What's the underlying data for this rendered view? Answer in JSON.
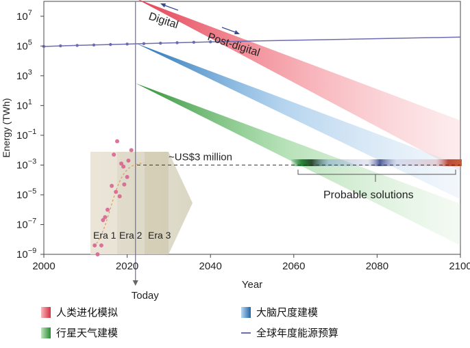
{
  "chart_data": {
    "type": "area",
    "xlabel": "Year",
    "ylabel": "Energy (TWh)",
    "xlim": [
      2000,
      2100
    ],
    "ylim_log10": [
      -9,
      8
    ],
    "x_ticks": [
      "2000",
      "2020",
      "2040",
      "2060",
      "2080",
      "2100"
    ],
    "y_ticks": [
      {
        "base": "10",
        "exp": "7"
      },
      {
        "base": "10",
        "exp": "5"
      },
      {
        "base": "10",
        "exp": "3"
      },
      {
        "base": "10",
        "exp": "1"
      },
      {
        "base": "10",
        "exp": "−1"
      },
      {
        "base": "10",
        "exp": "−3"
      },
      {
        "base": "10",
        "exp": "−5"
      },
      {
        "base": "10",
        "exp": "−7"
      },
      {
        "base": "10",
        "exp": "−9"
      }
    ],
    "today_year": 2022,
    "today_label": "Today",
    "series": [
      {
        "name": "人类进化模拟",
        "color": "#e8505b",
        "x": [
          2022,
          2100
        ],
        "upper_log10": [
          8.2,
          0.0
        ],
        "lower_log10": [
          8.2,
          -3.4
        ]
      },
      {
        "name": "大脑尺度建模",
        "color": "#3a86c8",
        "x": [
          2022,
          2100
        ],
        "upper_log10": [
          5.2,
          -3.0
        ],
        "lower_log10": [
          5.2,
          -5.3
        ]
      },
      {
        "name": "行星天气建模",
        "color": "#3ea047",
        "x": [
          2022,
          2100
        ],
        "upper_log10": [
          2.5,
          -5.6
        ],
        "lower_log10": [
          2.5,
          -8.4
        ]
      },
      {
        "name": "全球年度能源预算",
        "color": "#6b6bb0",
        "x": [
          2000,
          2004,
          2008,
          2012,
          2016,
          2020,
          2024,
          2028,
          2032,
          2036,
          2040,
          2100
        ],
        "y_log10": [
          4.97,
          5.01,
          5.04,
          5.07,
          5.1,
          5.13,
          5.16,
          5.19,
          5.22,
          5.25,
          5.28,
          5.6
        ]
      }
    ],
    "eras": [
      "Era 1",
      "Era 2",
      "Era 3"
    ],
    "era_points": [
      {
        "x": 2012.2,
        "y_log10": -8.4
      },
      {
        "x": 2012.9,
        "y_log10": -9.0
      },
      {
        "x": 2013.8,
        "y_log10": -8.4
      },
      {
        "x": 2014.2,
        "y_log10": -6.7
      },
      {
        "x": 2014.7,
        "y_log10": -6.5
      },
      {
        "x": 2015.3,
        "y_log10": -6.0
      },
      {
        "x": 2016.3,
        "y_log10": -4.4
      },
      {
        "x": 2016.8,
        "y_log10": -2.3
      },
      {
        "x": 2017.6,
        "y_log10": -1.4
      },
      {
        "x": 2017.3,
        "y_log10": -4.8
      },
      {
        "x": 2018.2,
        "y_log10": -5.1
      },
      {
        "x": 2018.6,
        "y_log10": -2.9
      },
      {
        "x": 2019.3,
        "y_log10": -4.3
      },
      {
        "x": 2019.1,
        "y_log10": -3.1
      },
      {
        "x": 2020.0,
        "y_log10": -3.8
      },
      {
        "x": 2020.3,
        "y_log10": -2.7
      },
      {
        "x": 2021.0,
        "y_log10": -2.0
      }
    ],
    "cost_value": 0.001,
    "cost_label": "~US$3 million",
    "probable_solutions_label": "Probable solutions",
    "annotations": {
      "digital": "Digital",
      "post_digital": "Post-digital"
    }
  },
  "legend": [
    {
      "label": "人类进化模拟",
      "color": "#e8505b"
    },
    {
      "label": "大脑尺度建模",
      "color": "#3a86c8"
    },
    {
      "label": "行星天气建模",
      "color": "#3ea047"
    },
    {
      "label": "全球年度能源预算",
      "color": "#6b6bb0"
    }
  ]
}
